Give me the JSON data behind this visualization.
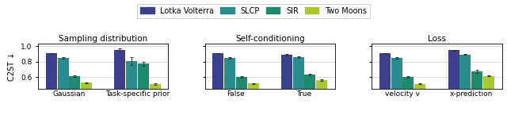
{
  "title_left": "Sampling distribution",
  "title_mid": "Self-conditioning",
  "title_right": "Loss",
  "ylabel": "C2ST ↓",
  "legend_labels": [
    "Lotka Volterra",
    "SLCP",
    "SIR",
    "Two Moons"
  ],
  "colors": [
    "#3b3f8c",
    "#2a8c8c",
    "#1f8a6e",
    "#a8c832"
  ],
  "bar_width": 0.17,
  "ylim": [
    0.45,
    1.03
  ],
  "yticks": [
    0.6,
    0.8,
    1.0
  ],
  "panel_left": {
    "groups": [
      "Gaussian",
      "Task-specific prior"
    ],
    "values": [
      [
        0.905,
        0.845,
        0.608,
        0.525
      ],
      [
        0.95,
        0.805,
        0.77,
        0.51
      ]
    ],
    "errors": [
      [
        0.007,
        0.007,
        0.01,
        0.005
      ],
      [
        0.018,
        0.052,
        0.022,
        0.008
      ]
    ]
  },
  "panel_mid": {
    "groups": [
      "False",
      "True"
    ],
    "values": [
      [
        0.905,
        0.845,
        0.6,
        0.515
      ],
      [
        0.885,
        0.855,
        0.63,
        0.56
      ]
    ],
    "errors": [
      [
        0.007,
        0.007,
        0.01,
        0.006
      ],
      [
        0.008,
        0.007,
        0.012,
        0.012
      ]
    ]
  },
  "panel_right": {
    "groups": [
      "velocity v",
      "x-prediction"
    ],
    "values": [
      [
        0.905,
        0.845,
        0.6,
        0.51
      ],
      [
        0.945,
        0.89,
        0.67,
        0.615
      ]
    ],
    "errors": [
      [
        0.007,
        0.007,
        0.01,
        0.005
      ],
      [
        0.008,
        0.007,
        0.018,
        0.008
      ]
    ]
  }
}
